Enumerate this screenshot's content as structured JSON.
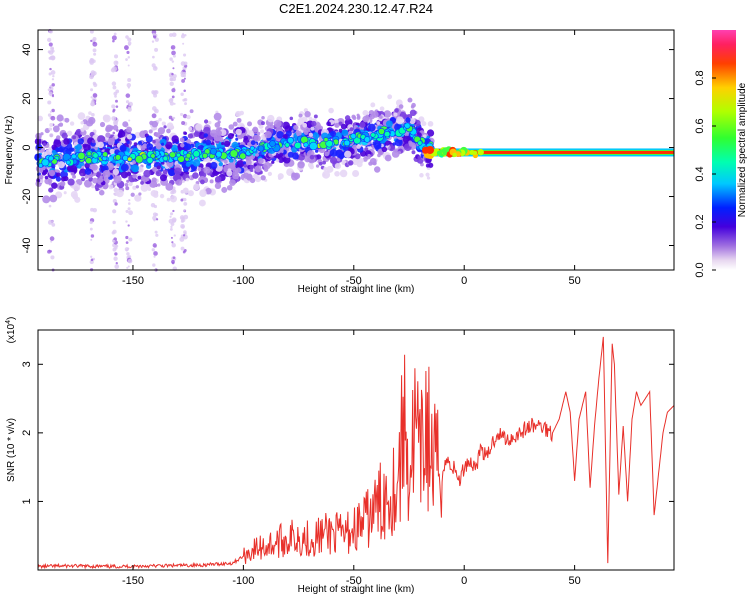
{
  "title": "C2E1.2024.230.12.47.R24",
  "colors": {
    "snr_line": "#e8302a",
    "spectrogram_bg": "#ffffff",
    "axis": "#000000"
  },
  "chart_data": [
    {
      "type": "heatmap",
      "name": "spectrogram",
      "xlabel": "Height of straight line (km)",
      "ylabel": "Frequency (Hz)",
      "xlim": [
        -193,
        95
      ],
      "ylim": [
        -50,
        48
      ],
      "xticks": [
        -150,
        -100,
        -50,
        0,
        50
      ],
      "yticks": [
        -40,
        -20,
        0,
        20,
        40
      ],
      "ridge": {
        "description_points_x": [
          -193,
          -170,
          -150,
          -120,
          -100,
          -80,
          -60,
          -45,
          -35,
          -25,
          -18,
          -10,
          0,
          3,
          10,
          50,
          95
        ],
        "description_points_y": [
          -6,
          -4,
          -4,
          -3,
          -2,
          2,
          2,
          4,
          6,
          8,
          0,
          0,
          -1,
          -2,
          -2,
          -2,
          -2
        ]
      },
      "colorbar": {
        "label": "Normalized spectral amplitude",
        "range": [
          0.0,
          1.0
        ],
        "ticks": [
          "0.0",
          "0.2",
          "0.4",
          "0.6",
          "0.8"
        ],
        "tick_values": [
          0.0,
          0.2,
          0.4,
          0.6,
          0.8
        ]
      }
    },
    {
      "type": "line",
      "name": "snr",
      "xlabel": "Height of straight line (km)",
      "ylabel": "SNR (10 * v/v)",
      "y_multiplier_base": "(x10",
      "y_multiplier_exp": "4",
      "y_multiplier_close": ")",
      "xlim": [
        -193,
        95
      ],
      "ylim": [
        0,
        3.5
      ],
      "xticks": [
        -150,
        -100,
        -50,
        0,
        50
      ],
      "yticks": [
        1,
        2,
        3
      ],
      "series": [
        {
          "name": "SNR",
          "x": [
            -193,
            -180,
            -160,
            -140,
            -120,
            -105,
            -100,
            -95,
            -90,
            -85,
            -80,
            -75,
            -70,
            -65,
            -60,
            -55,
            -50,
            -45,
            -40,
            -35,
            -30,
            -27,
            -25,
            -22,
            -20,
            -17,
            -15,
            -12,
            -10,
            -8,
            -5,
            -2,
            0,
            2,
            5,
            8,
            10,
            12,
            15,
            20,
            25,
            30,
            35,
            40,
            43,
            46,
            48,
            50,
            52,
            55,
            57,
            59,
            61,
            63,
            65,
            67,
            68,
            70,
            72,
            74,
            76,
            78,
            80,
            82,
            84,
            86,
            88,
            90,
            92,
            95
          ],
          "y": [
            0.05,
            0.06,
            0.05,
            0.06,
            0.07,
            0.1,
            0.2,
            0.3,
            0.35,
            0.4,
            0.45,
            0.5,
            0.45,
            0.5,
            0.55,
            0.5,
            0.6,
            0.7,
            0.9,
            1.1,
            1.3,
            2.2,
            1.4,
            2.1,
            1.5,
            2.2,
            1.6,
            1.5,
            1.4,
            1.6,
            1.5,
            1.3,
            1.5,
            1.6,
            1.5,
            1.8,
            1.6,
            1.8,
            2.0,
            1.9,
            2.0,
            2.1,
            2.1,
            2.0,
            2.2,
            2.6,
            2.3,
            1.3,
            2.2,
            2.6,
            1.2,
            2.1,
            2.8,
            3.4,
            0.1,
            3.3,
            3.0,
            1.1,
            2.1,
            1.0,
            2.2,
            2.6,
            2.4,
            2.5,
            2.6,
            0.8,
            1.4,
            2.0,
            2.3,
            2.4
          ]
        }
      ]
    }
  ]
}
